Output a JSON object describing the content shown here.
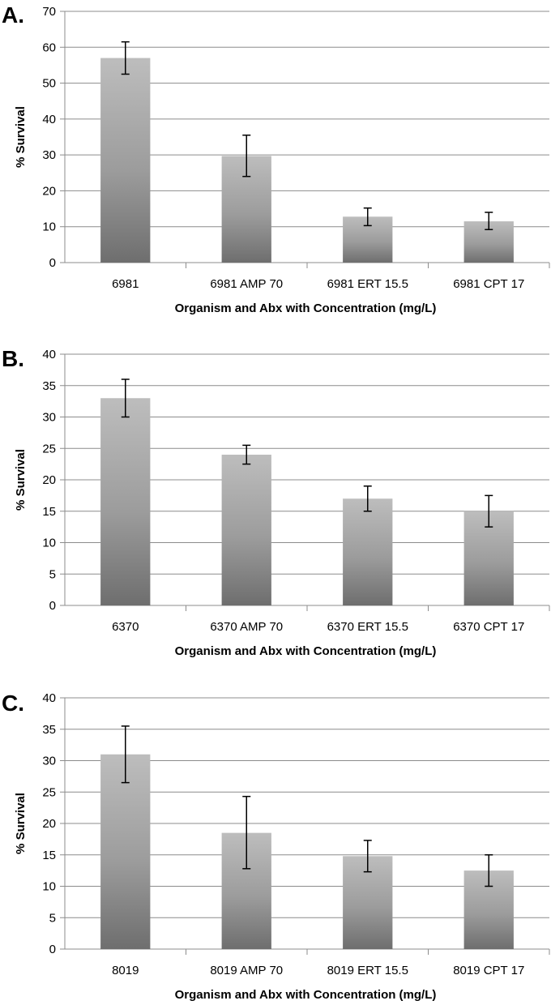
{
  "chart_data": [
    {
      "panel": "A.",
      "type": "bar",
      "categories": [
        "6981",
        "6981 AMP 70",
        "6981 ERT 15.5",
        "6981 CPT 17"
      ],
      "values": [
        57,
        29.7,
        12.8,
        11.5
      ],
      "error_bars": [
        [
          52.5,
          61.5
        ],
        [
          24,
          35.5
        ],
        [
          10.3,
          15.2
        ],
        [
          9.2,
          14
        ]
      ],
      "xlabel": "Organism and Abx with Concentration (mg/L)",
      "ylabel": "% Survival",
      "ylim": [
        0,
        70
      ],
      "yticks": [
        0,
        10,
        20,
        30,
        40,
        50,
        60,
        70
      ],
      "grid": true,
      "bar_color": "#9a9a9a"
    },
    {
      "panel": "B.",
      "type": "bar",
      "categories": [
        "6370",
        "6370 AMP 70",
        "6370 ERT 15.5",
        "6370 CPT 17"
      ],
      "values": [
        33,
        24,
        17,
        15
      ],
      "error_bars": [
        [
          30,
          36
        ],
        [
          22.5,
          25.5
        ],
        [
          15,
          19
        ],
        [
          12.5,
          17.5
        ]
      ],
      "xlabel": "Organism and Abx with Concentration (mg/L)",
      "ylabel": "% Survival",
      "ylim": [
        0,
        40
      ],
      "yticks": [
        0,
        5,
        10,
        15,
        20,
        25,
        30,
        35,
        40
      ],
      "grid": true,
      "bar_color": "#9a9a9a"
    },
    {
      "panel": "C.",
      "type": "bar",
      "categories": [
        "8019",
        "8019 AMP 70",
        "8019 ERT 15.5",
        "8019 CPT 17"
      ],
      "values": [
        31,
        18.5,
        14.8,
        12.5
      ],
      "error_bars": [
        [
          26.5,
          35.5
        ],
        [
          12.8,
          24.3
        ],
        [
          12.3,
          17.3
        ],
        [
          10,
          15
        ]
      ],
      "xlabel": "Organism and Abx with Concentration (mg/L)",
      "ylabel": "% Survival",
      "ylim": [
        0,
        40
      ],
      "yticks": [
        0,
        5,
        10,
        15,
        20,
        25,
        30,
        35,
        40
      ],
      "grid": true,
      "bar_color": "#9a9a9a"
    }
  ]
}
